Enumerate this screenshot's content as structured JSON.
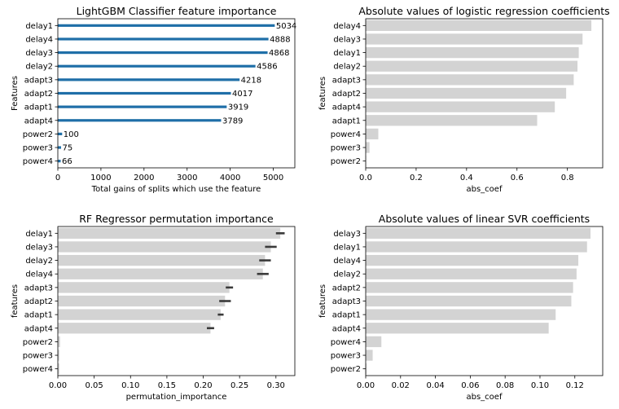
{
  "chart_data": [
    {
      "type": "bar",
      "orientation": "horizontal",
      "style": "lollipop",
      "title": "LightGBM Classifier feature importance",
      "xlabel": "Total gains of splits which use the feature",
      "ylabel": "Features",
      "categories": [
        "delay1",
        "delay4",
        "delay3",
        "delay2",
        "adapt3",
        "adapt2",
        "adapt1",
        "adapt4",
        "power2",
        "power3",
        "power4"
      ],
      "values": [
        5034,
        4888,
        4868,
        4586,
        4218,
        4017,
        3919,
        3789,
        100,
        75,
        66
      ],
      "xlim": [
        0,
        5500
      ],
      "xticks": [
        0,
        1000,
        2000,
        3000,
        4000,
        5000
      ],
      "xtick_labels": [
        "0",
        "1000",
        "2000",
        "3000",
        "4000",
        "5000"
      ],
      "data_labels": true,
      "color": "#1f6fa8"
    },
    {
      "type": "bar",
      "orientation": "horizontal",
      "title": "Absolute values of logistic regression coefficients",
      "xlabel": "abs_coef",
      "ylabel": "features",
      "categories": [
        "delay4",
        "delay3",
        "delay1",
        "delay2",
        "adapt3",
        "adapt2",
        "adapt4",
        "adapt1",
        "power4",
        "power3",
        "power2"
      ],
      "values": [
        0.895,
        0.86,
        0.845,
        0.84,
        0.825,
        0.795,
        0.75,
        0.68,
        0.05,
        0.015,
        0.002
      ],
      "xlim": [
        0,
        0.94
      ],
      "xticks": [
        0,
        0.2,
        0.4,
        0.6,
        0.8
      ],
      "xtick_labels": [
        "0.0",
        "0.2",
        "0.4",
        "0.6",
        "0.8"
      ],
      "color": "#d3d3d3"
    },
    {
      "type": "bar",
      "orientation": "horizontal",
      "title": "RF Regressor permutation importance",
      "xlabel": "permutation_importance",
      "ylabel": "features",
      "categories": [
        "delay1",
        "delay3",
        "delay2",
        "delay4",
        "adapt3",
        "adapt2",
        "adapt1",
        "adapt4",
        "power2",
        "power3",
        "power4"
      ],
      "values": [
        0.306,
        0.293,
        0.285,
        0.282,
        0.236,
        0.23,
        0.224,
        0.21,
        0.003,
        0.002,
        0.002
      ],
      "errors": [
        0.006,
        0.008,
        0.008,
        0.008,
        0.005,
        0.008,
        0.004,
        0.005,
        0,
        0,
        0
      ],
      "xlim": [
        0,
        0.326
      ],
      "xticks": [
        0,
        0.05,
        0.1,
        0.15,
        0.2,
        0.25,
        0.3
      ],
      "xtick_labels": [
        "0.00",
        "0.05",
        "0.10",
        "0.15",
        "0.20",
        "0.25",
        "0.30"
      ],
      "color": "#d3d3d3",
      "error_color": "#3a3a3a"
    },
    {
      "type": "bar",
      "orientation": "horizontal",
      "title": "Absolute values of linear SVR coefficients",
      "xlabel": "abs_coef",
      "ylabel": "features",
      "categories": [
        "delay3",
        "delay1",
        "delay4",
        "delay2",
        "adapt2",
        "adapt3",
        "adapt1",
        "adapt4",
        "power4",
        "power3",
        "power2"
      ],
      "values": [
        0.129,
        0.127,
        0.122,
        0.121,
        0.119,
        0.118,
        0.109,
        0.105,
        0.009,
        0.004,
        0.0005
      ],
      "xlim": [
        0,
        0.136
      ],
      "xticks": [
        0,
        0.02,
        0.04,
        0.06,
        0.08,
        0.1,
        0.12
      ],
      "xtick_labels": [
        "0.00",
        "0.02",
        "0.04",
        "0.06",
        "0.08",
        "0.10",
        "0.12"
      ],
      "color": "#d3d3d3"
    }
  ]
}
